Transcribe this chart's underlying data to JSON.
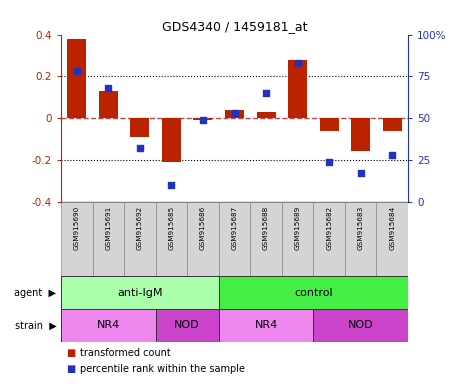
{
  "title": "GDS4340 / 1459181_at",
  "samples": [
    "GSM915690",
    "GSM915691",
    "GSM915692",
    "GSM915685",
    "GSM915686",
    "GSM915687",
    "GSM915688",
    "GSM915689",
    "GSM915682",
    "GSM915683",
    "GSM915684"
  ],
  "transformed_count": [
    0.38,
    0.13,
    -0.09,
    -0.21,
    -0.01,
    0.04,
    0.03,
    0.28,
    -0.06,
    -0.16,
    -0.06
  ],
  "percentile_rank": [
    78,
    68,
    32,
    10,
    49,
    53,
    65,
    83,
    24,
    17,
    28
  ],
  "ylim_left": [
    -0.4,
    0.4
  ],
  "yticks_left": [
    -0.4,
    -0.2,
    0.0,
    0.2,
    0.4
  ],
  "yticks_right": [
    0,
    25,
    50,
    75,
    100
  ],
  "ytick_labels_right": [
    "0",
    "25",
    "50",
    "75",
    "100%"
  ],
  "bar_color": "#bb2200",
  "dot_color": "#2233bb",
  "zero_line_color": "#cc4444",
  "dotted_line_color": "#000000",
  "agent_labels": [
    {
      "text": "anti-IgM",
      "start": 0,
      "end": 4,
      "color": "#aaffaa"
    },
    {
      "text": "control",
      "start": 5,
      "end": 10,
      "color": "#44ee44"
    }
  ],
  "strain_labels": [
    {
      "text": "NR4",
      "start": 0,
      "end": 2,
      "color": "#ee88ee"
    },
    {
      "text": "NOD",
      "start": 3,
      "end": 4,
      "color": "#cc44cc"
    },
    {
      "text": "NR4",
      "start": 5,
      "end": 7,
      "color": "#ee88ee"
    },
    {
      "text": "NOD",
      "start": 8,
      "end": 10,
      "color": "#cc44cc"
    }
  ],
  "legend_bar_color": "#bb2200",
  "legend_dot_color": "#2233bb",
  "legend_bar_label": "transformed count",
  "legend_dot_label": "percentile rank within the sample",
  "background_color": "#ffffff",
  "bar_width": 0.6
}
